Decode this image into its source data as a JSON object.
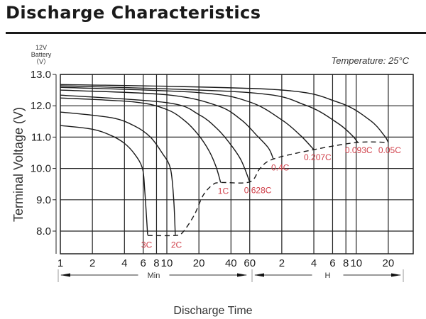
{
  "title": "Discharge Characteristics",
  "chart_data": {
    "type": "line",
    "title": "",
    "ylabel": "Terminal Voltage (V)",
    "ylabel_top": [
      "12V",
      "Battery",
      "（V）"
    ],
    "xlabel": "Discharge Time",
    "annotation": "Temperature: 25°C",
    "x_scale": "log",
    "x_units_segments": [
      {
        "label": "Min",
        "ticks": [
          "1",
          "2",
          "4",
          "6",
          "8",
          "10",
          "20",
          "40",
          "60"
        ],
        "values_min": [
          1,
          2,
          4,
          6,
          8,
          10,
          20,
          40,
          60
        ]
      },
      {
        "label": "H",
        "ticks": [
          "2",
          "4",
          "6",
          "8",
          "10",
          "20"
        ],
        "values_min": [
          120,
          240,
          360,
          480,
          600,
          1200
        ]
      }
    ],
    "xlim_min": [
      1,
      2050
    ],
    "ylim": [
      7.25,
      13.0
    ],
    "y_ticks": [
      "13.0",
      "12.0",
      "11.0",
      "10.0",
      "9.0",
      "8.0"
    ],
    "y_tick_values": [
      13,
      12,
      11,
      10,
      9,
      8
    ],
    "grid": true,
    "label_color": "#d0404a",
    "series": [
      {
        "name": "3C",
        "points": [
          [
            1,
            11.37
          ],
          [
            2,
            11.25
          ],
          [
            3,
            11.05
          ],
          [
            4,
            10.8
          ],
          [
            5,
            10.45
          ],
          [
            5.9,
            10.0
          ],
          [
            6.2,
            9.3
          ],
          [
            6.6,
            7.88
          ]
        ]
      },
      {
        "name": "2C",
        "points": [
          [
            1,
            11.8
          ],
          [
            3,
            11.62
          ],
          [
            5,
            11.35
          ],
          [
            7,
            11.0
          ],
          [
            9,
            10.5
          ],
          [
            10.8,
            10.0
          ],
          [
            11.6,
            9.0
          ],
          [
            12,
            7.88
          ]
        ]
      },
      {
        "name": "1C",
        "points": [
          [
            1,
            12.25
          ],
          [
            5,
            12.12
          ],
          [
            10,
            11.88
          ],
          [
            15,
            11.5
          ],
          [
            20,
            11.05
          ],
          [
            25,
            10.55
          ],
          [
            29,
            10.05
          ],
          [
            32,
            9.55
          ]
        ]
      },
      {
        "name": "0.628C",
        "points": [
          [
            1,
            12.34
          ],
          [
            10,
            12.1
          ],
          [
            20,
            11.72
          ],
          [
            30,
            11.25
          ],
          [
            40,
            10.75
          ],
          [
            50,
            10.25
          ],
          [
            60,
            9.57
          ]
        ]
      },
      {
        "name": "0.4C",
        "points": [
          [
            1,
            12.5
          ],
          [
            10,
            12.35
          ],
          [
            30,
            12.0
          ],
          [
            50,
            11.55
          ],
          [
            70,
            11.05
          ],
          [
            90,
            10.65
          ],
          [
            100,
            10.3
          ]
        ]
      },
      {
        "name": "0.207C",
        "points": [
          [
            1,
            12.59
          ],
          [
            20,
            12.42
          ],
          [
            60,
            12.12
          ],
          [
            120,
            11.55
          ],
          [
            180,
            11.05
          ],
          [
            240,
            10.6
          ]
        ]
      },
      {
        "name": "0.093C",
        "points": [
          [
            1,
            12.64
          ],
          [
            60,
            12.42
          ],
          [
            200,
            12.02
          ],
          [
            400,
            11.45
          ],
          [
            550,
            11.05
          ],
          [
            620,
            10.83
          ]
        ]
      },
      {
        "name": "0.05C",
        "points": [
          [
            1,
            12.68
          ],
          [
            100,
            12.52
          ],
          [
            400,
            12.12
          ],
          [
            800,
            11.55
          ],
          [
            1100,
            11.05
          ],
          [
            1200,
            10.83
          ]
        ]
      }
    ],
    "cutoff_line": {
      "style": "dashed",
      "points": [
        [
          6.6,
          7.86
        ],
        [
          12,
          7.86
        ],
        [
          14,
          7.95
        ],
        [
          18,
          8.5
        ],
        [
          22,
          9.15
        ],
        [
          27,
          9.48
        ],
        [
          32,
          9.55
        ],
        [
          60,
          9.57
        ],
        [
          75,
          10.0
        ],
        [
          100,
          10.3
        ],
        [
          240,
          10.6
        ],
        [
          620,
          10.83
        ],
        [
          1200,
          10.83
        ]
      ]
    }
  }
}
